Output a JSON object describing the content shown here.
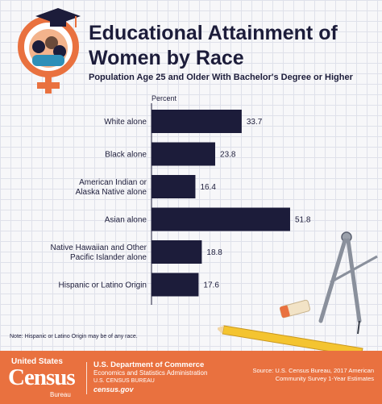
{
  "header": {
    "title": "Educational Attainment of Women by Race",
    "subtitle": "Population Age 25 and Older With Bachelor's Degree or Higher"
  },
  "chart_data": {
    "type": "bar",
    "orientation": "horizontal",
    "title": "Educational Attainment of Women by Race",
    "subtitle": "Population Age 25 and Older With Bachelor's Degree or Higher",
    "unit_label": "Percent",
    "categories": [
      [
        "White alone"
      ],
      [
        "Black alone"
      ],
      [
        "American Indian or",
        "Alaska Native alone"
      ],
      [
        "Asian alone"
      ],
      [
        "Native Hawaiian and Other",
        "Pacific Islander alone"
      ],
      [
        "Hispanic or Latino Origin"
      ]
    ],
    "values": [
      33.7,
      23.8,
      16.4,
      51.8,
      18.8,
      17.6
    ],
    "data_labels": [
      "33.7",
      "23.8",
      "16.4",
      "51.8",
      "18.8",
      "17.6"
    ],
    "xlim": [
      0,
      60
    ],
    "bar_color": "#1c1c3a",
    "grid": false,
    "legend": "none"
  },
  "note": "Note: Hispanic or Latino Origin may be of any race.",
  "footer": {
    "logo_top": "United States",
    "logo_main": "Census",
    "logo_bureau": "Bureau",
    "department": "U.S. Department of Commerce",
    "administration": "Economics and Statistics Administration",
    "bureau": "U.S. CENSUS BUREAU",
    "website": "census.gov",
    "source": "Source: U.S. Census Bureau, 2017 American Community Survey 1-Year Estimates"
  },
  "colors": {
    "accent": "#e9713f",
    "navy": "#1c1c3a",
    "background": "#f7f7f9"
  },
  "icons": [
    "female-symbol-icon",
    "graduation-cap-icon",
    "compass-icon",
    "pencil-icon",
    "eraser-icon"
  ]
}
